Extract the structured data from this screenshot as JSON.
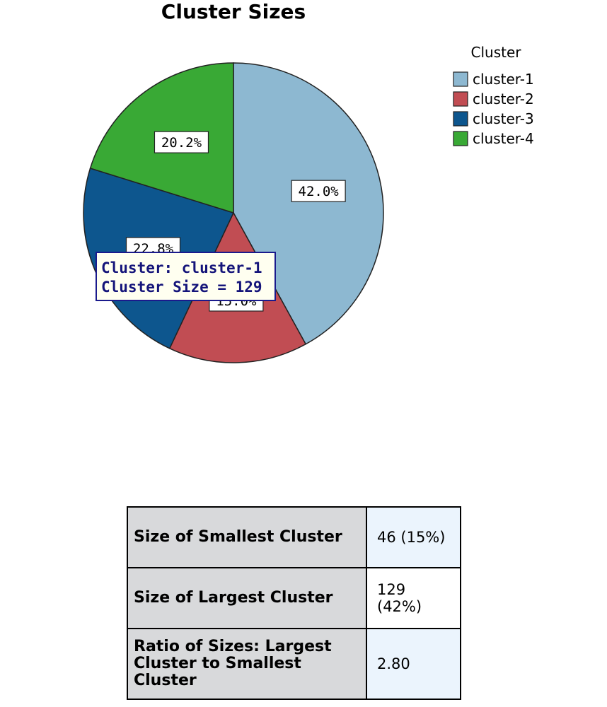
{
  "chart_data": {
    "type": "pie",
    "title": "Cluster Sizes",
    "legend_title": "Cluster",
    "legend_position": "top-right",
    "slices": [
      {
        "label": "cluster-1",
        "percent": 42.0,
        "display": "42.0%",
        "color": "#8db8d1"
      },
      {
        "label": "cluster-2",
        "percent": 15.0,
        "display": "15.0%",
        "color": "#c14d53"
      },
      {
        "label": "cluster-3",
        "percent": 22.8,
        "display": "22.8%",
        "color": "#0d568e"
      },
      {
        "label": "cluster-4",
        "percent": 20.2,
        "display": "20.2%",
        "color": "#39a935"
      }
    ]
  },
  "tooltip": {
    "line1": "Cluster: cluster-1",
    "line2": "Cluster Size = 129"
  },
  "summary": {
    "rows": [
      {
        "label": "Size of Smallest Cluster",
        "value": "46 (15%)"
      },
      {
        "label": "Size of Largest Cluster",
        "value": "129 (42%)"
      },
      {
        "label": "Ratio of Sizes: Largest Cluster to Smallest Cluster",
        "value": "2.80"
      }
    ]
  }
}
